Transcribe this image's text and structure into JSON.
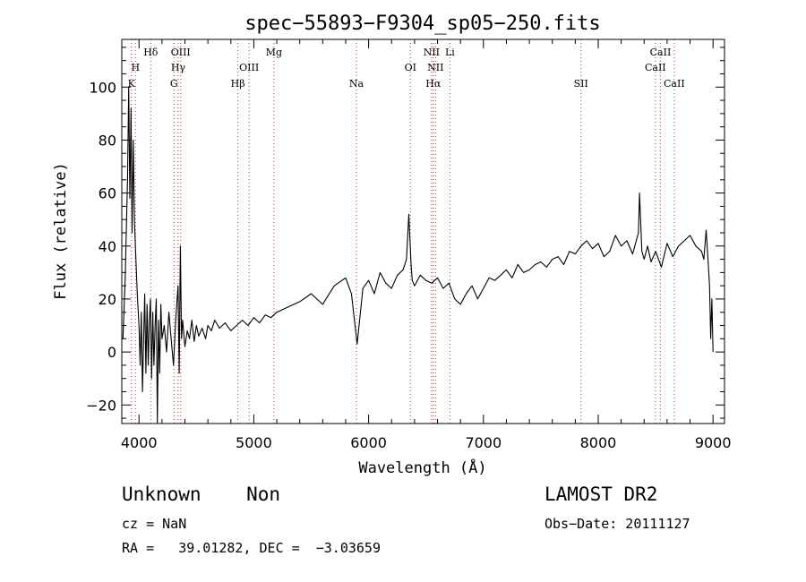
{
  "chart_data": {
    "type": "line",
    "title": "spec−55893−F9304_sp05−250.fits",
    "xlabel": "Wavelength (Å)",
    "ylabel": "Flux (relative)",
    "xlim": [
      3850,
      9100
    ],
    "ylim": [
      -27,
      118
    ],
    "xticks": [
      {
        "value": 4000,
        "label": "4000"
      },
      {
        "value": 5000,
        "label": "5000"
      },
      {
        "value": 6000,
        "label": "6000"
      },
      {
        "value": 7000,
        "label": "7000"
      },
      {
        "value": 8000,
        "label": "8000"
      },
      {
        "value": 9000,
        "label": "9000"
      }
    ],
    "yticks": [
      {
        "value": -20,
        "label": "−20"
      },
      {
        "value": 0,
        "label": "0"
      },
      {
        "value": 20,
        "label": "20"
      },
      {
        "value": 40,
        "label": "40"
      },
      {
        "value": 60,
        "label": "60"
      },
      {
        "value": 80,
        "label": "80"
      },
      {
        "value": 100,
        "label": "100"
      }
    ],
    "spectral_lines": [
      {
        "label": "K",
        "wavelength": 3934,
        "row": 3
      },
      {
        "label": "H",
        "wavelength": 3969,
        "row": 2
      },
      {
        "label": "Hδ",
        "wavelength": 4102,
        "row": 1
      },
      {
        "label": "G",
        "wavelength": 4305,
        "row": 3
      },
      {
        "label": "Hγ",
        "wavelength": 4341,
        "row": 2
      },
      {
        "label": "OIII",
        "wavelength": 4363,
        "row": 1
      },
      {
        "label": "Hβ",
        "wavelength": 4861,
        "row": 3
      },
      {
        "label": "OIII",
        "wavelength": 4959,
        "row": 2
      },
      {
        "label": "Mg",
        "wavelength": 5175,
        "row": 1
      },
      {
        "label": "Na",
        "wavelength": 5894,
        "row": 3
      },
      {
        "label": "OI",
        "wavelength": 6364,
        "row": 2
      },
      {
        "label": "NII",
        "wavelength": 6548,
        "row": 1
      },
      {
        "label": "Hα",
        "wavelength": 6563,
        "row": 3
      },
      {
        "label": "NII",
        "wavelength": 6583,
        "row": 2
      },
      {
        "label": "Li",
        "wavelength": 6708,
        "row": 1
      },
      {
        "label": "SII",
        "wavelength": 7850,
        "row": 3
      },
      {
        "label": "CaII",
        "wavelength": 8498,
        "row": 2
      },
      {
        "label": "CaII",
        "wavelength": 8542,
        "row": 1
      },
      {
        "label": "CaII",
        "wavelength": 8662,
        "row": 3
      }
    ],
    "series": [
      {
        "x": [
          3860,
          3880,
          3900,
          3910,
          3920,
          3930,
          3940,
          3950,
          3960,
          3970,
          3985,
          4000,
          4010,
          4020,
          4030,
          4040,
          4050,
          4060,
          4070,
          4080,
          4090,
          4100,
          4110,
          4120,
          4130,
          4140,
          4150,
          4160,
          4170,
          4180,
          4190,
          4200,
          4220,
          4240,
          4260,
          4280,
          4300,
          4320,
          4340,
          4350,
          4360,
          4370,
          4380,
          4400,
          4420,
          4440,
          4460,
          4480,
          4500,
          4520,
          4550,
          4580,
          4600,
          4630,
          4660,
          4700,
          4750,
          4800,
          4850,
          4900,
          4950,
          5000,
          5050,
          5100,
          5150,
          5200,
          5300,
          5400,
          5500,
          5600,
          5700,
          5800,
          5850,
          5900,
          5950,
          6000,
          6050,
          6100,
          6150,
          6200,
          6250,
          6300,
          6330,
          6350,
          6370,
          6380,
          6400,
          6450,
          6500,
          6550,
          6600,
          6650,
          6700,
          6750,
          6800,
          6850,
          6900,
          6950,
          7000,
          7050,
          7100,
          7150,
          7200,
          7250,
          7300,
          7350,
          7400,
          7450,
          7500,
          7550,
          7600,
          7650,
          7700,
          7750,
          7800,
          7850,
          7900,
          7950,
          8000,
          8050,
          8100,
          8150,
          8200,
          8250,
          8300,
          8350,
          8360,
          8380,
          8400,
          8430,
          8460,
          8500,
          8550,
          8600,
          8650,
          8700,
          8750,
          8800,
          8850,
          8900,
          8920,
          8940,
          8960,
          8970,
          8980,
          8990,
          9000
        ],
        "y": [
          5,
          28,
          65,
          100,
          58,
          92,
          45,
          80,
          50,
          38,
          22,
          10,
          -5,
          15,
          -15,
          5,
          22,
          -8,
          18,
          -5,
          12,
          20,
          -10,
          15,
          -5,
          10,
          20,
          -27,
          12,
          -8,
          18,
          5,
          10,
          0,
          15,
          5,
          -5,
          12,
          25,
          -8,
          40,
          5,
          12,
          2,
          8,
          5,
          12,
          4,
          10,
          6,
          9,
          5,
          10,
          8,
          12,
          9,
          11,
          8,
          10,
          12,
          10,
          13,
          11,
          14,
          13,
          15,
          17,
          19,
          22,
          18,
          25,
          28,
          22,
          3,
          24,
          27,
          22,
          30,
          26,
          24,
          29,
          31,
          35,
          52,
          33,
          27,
          25,
          29,
          27,
          26,
          28,
          24,
          26,
          20,
          18,
          22,
          25,
          20,
          24,
          28,
          27,
          29,
          31,
          28,
          33,
          30,
          31,
          33,
          34,
          32,
          35,
          36,
          33,
          38,
          37,
          40,
          42,
          39,
          41,
          36,
          38,
          44,
          40,
          42,
          37,
          45,
          60,
          38,
          35,
          40,
          34,
          38,
          32,
          41,
          36,
          40,
          42,
          44,
          40,
          38,
          35,
          46,
          32,
          25,
          5,
          20,
          0
        ]
      }
    ]
  },
  "info": {
    "object": "Unknown    Non",
    "cz": "cz = NaN",
    "coords": "RA =   39.01282, DEC =  −3.03659",
    "survey": "LAMOST DR2",
    "obs_date": "Obs−Date: 20111127"
  }
}
